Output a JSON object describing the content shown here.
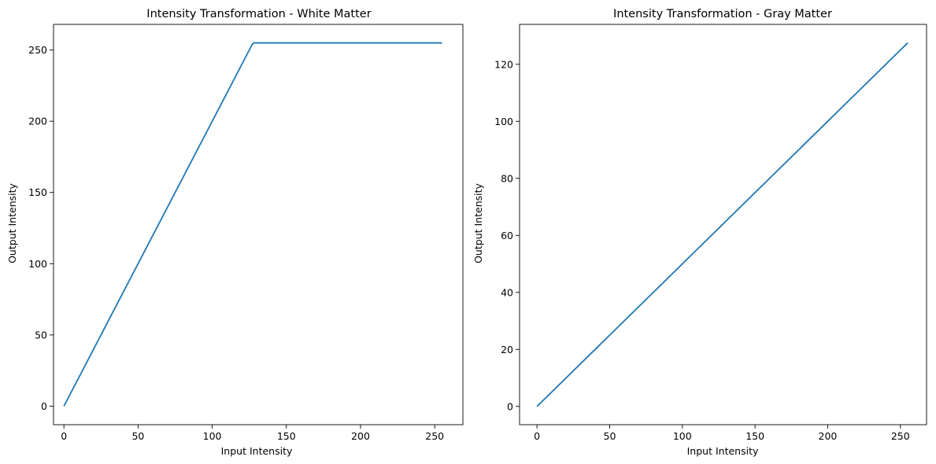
{
  "chart_data": [
    {
      "type": "line",
      "title": "Intensity Transformation - White Matter",
      "xlabel": "Input Intensity",
      "ylabel": "Output Intensity",
      "xlim": [
        -7,
        269
      ],
      "ylim": [
        -13,
        268
      ],
      "xticks": [
        0,
        50,
        100,
        150,
        200,
        250
      ],
      "yticks": [
        0,
        50,
        100,
        150,
        200,
        250
      ],
      "grid": false,
      "series": [
        {
          "color": "#1f77b4",
          "x": [
            0,
            127,
            128,
            255
          ],
          "y": [
            0,
            254,
            255,
            255
          ]
        }
      ]
    },
    {
      "type": "line",
      "title": "Intensity Transformation - Gray Matter",
      "xlabel": "Input Intensity",
      "ylabel": "Output Intensity",
      "xlim": [
        -12,
        268
      ],
      "ylim": [
        -6.4,
        134
      ],
      "xticks": [
        0,
        50,
        100,
        150,
        200,
        250
      ],
      "yticks": [
        0,
        20,
        40,
        60,
        80,
        100,
        120
      ],
      "grid": false,
      "series": [
        {
          "color": "#1f77b4",
          "x": [
            0,
            255
          ],
          "y": [
            0,
            127.5
          ]
        }
      ]
    }
  ]
}
